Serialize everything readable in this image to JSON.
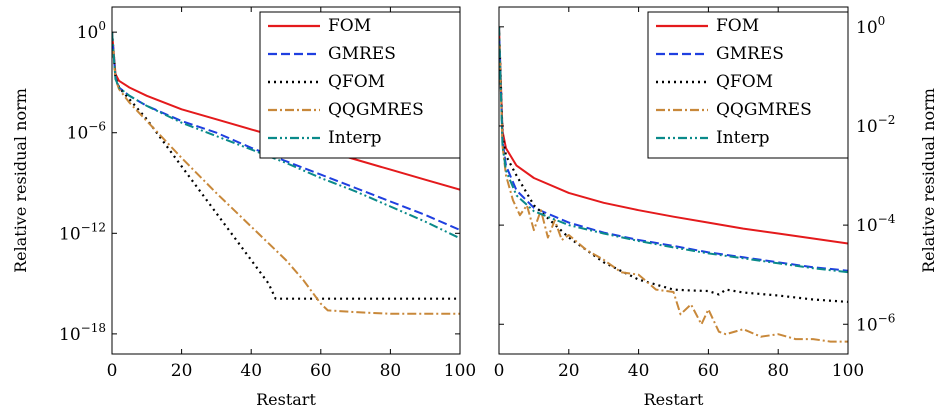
{
  "chart_data": [
    {
      "type": "line",
      "xlabel": "Restart",
      "ylabel": "Relative residual norm",
      "ylabel_side": "left",
      "xlim": [
        0,
        100
      ],
      "ylim_log10": [
        -19.2,
        1.5
      ],
      "yscale": "log",
      "xticks": [
        0,
        20,
        40,
        60,
        80,
        100
      ],
      "yticks_exp": [
        0,
        -6,
        -12,
        -18
      ],
      "legend_position": "top-right",
      "series": [
        {
          "name": "FOM",
          "color": "#e41a1c",
          "dash": "solid",
          "x": [
            0,
            1,
            2,
            5,
            10,
            20,
            30,
            40,
            50,
            60,
            70,
            80,
            90,
            100
          ],
          "y_log10": [
            0.0,
            -2.5,
            -2.9,
            -3.3,
            -3.8,
            -4.6,
            -5.2,
            -5.8,
            -6.4,
            -7.0,
            -7.6,
            -8.2,
            -8.8,
            -9.4
          ]
        },
        {
          "name": "GMRES",
          "color": "#1f3fe0",
          "dash": "dashed",
          "x": [
            0,
            1,
            2,
            5,
            10,
            20,
            30,
            40,
            50,
            60,
            70,
            80,
            90,
            100
          ],
          "y_log10": [
            0.0,
            -2.7,
            -3.3,
            -3.8,
            -4.4,
            -5.3,
            -6.0,
            -6.9,
            -7.7,
            -8.5,
            -9.3,
            -10.1,
            -10.9,
            -11.8
          ]
        },
        {
          "name": "QFOM",
          "color": "#000000",
          "dash": "dotted",
          "x": [
            0,
            1,
            2,
            5,
            10,
            20,
            30,
            40,
            45,
            47,
            50,
            60,
            70,
            80,
            90,
            100
          ],
          "y_log10": [
            0.0,
            -2.7,
            -3.3,
            -4.0,
            -5.2,
            -8.0,
            -10.8,
            -13.6,
            -15.0,
            -15.9,
            -15.9,
            -15.9,
            -15.9,
            -15.9,
            -15.9,
            -15.9
          ]
        },
        {
          "name": "QQGMRES",
          "color": "#c8883a",
          "dash": "dashdot",
          "x": [
            0,
            1,
            2,
            5,
            10,
            20,
            30,
            40,
            50,
            55,
            60,
            62,
            70,
            80,
            90,
            100
          ],
          "y_log10": [
            0.0,
            -2.8,
            -3.4,
            -4.2,
            -5.3,
            -7.5,
            -9.6,
            -11.6,
            -13.6,
            -14.8,
            -16.2,
            -16.6,
            -16.7,
            -16.8,
            -16.8,
            -16.8
          ]
        },
        {
          "name": "Interp",
          "color": "#0a8a8a",
          "dash": "dashdotdot",
          "x": [
            0,
            1,
            2,
            5,
            10,
            20,
            30,
            40,
            50,
            60,
            70,
            80,
            90,
            100
          ],
          "y_log10": [
            0.0,
            -2.8,
            -3.3,
            -3.8,
            -4.4,
            -5.4,
            -6.2,
            -7.0,
            -7.8,
            -8.7,
            -9.5,
            -10.4,
            -11.3,
            -12.3
          ]
        }
      ]
    },
    {
      "type": "line",
      "xlabel": "Restart",
      "ylabel": "Relative residual norm",
      "ylabel_side": "right",
      "xlim": [
        0,
        100
      ],
      "ylim_log10": [
        -6.6,
        0.4
      ],
      "yscale": "log",
      "xticks": [
        0,
        20,
        40,
        60,
        80,
        100
      ],
      "yticks_exp": [
        0,
        -2,
        -4,
        -6
      ],
      "legend_position": "top-right",
      "series": [
        {
          "name": "FOM",
          "color": "#e41a1c",
          "dash": "solid",
          "x": [
            0,
            1,
            2,
            5,
            10,
            20,
            30,
            40,
            50,
            60,
            70,
            80,
            90,
            100
          ],
          "y_log10": [
            0.0,
            -2.1,
            -2.45,
            -2.8,
            -3.05,
            -3.35,
            -3.55,
            -3.7,
            -3.83,
            -3.95,
            -4.07,
            -4.17,
            -4.27,
            -4.37
          ]
        },
        {
          "name": "GMRES",
          "color": "#1f3fe0",
          "dash": "dashed",
          "x": [
            0,
            1,
            2,
            5,
            10,
            20,
            30,
            40,
            50,
            60,
            70,
            80,
            90,
            100
          ],
          "y_log10": [
            0.0,
            -2.3,
            -2.8,
            -3.3,
            -3.65,
            -3.95,
            -4.15,
            -4.3,
            -4.42,
            -4.55,
            -4.65,
            -4.75,
            -4.85,
            -4.92
          ]
        },
        {
          "name": "QFOM",
          "color": "#000000",
          "dash": "dotted",
          "x": [
            0,
            1,
            2,
            5,
            10,
            20,
            30,
            40,
            50,
            55,
            60,
            63,
            65,
            70,
            80,
            90,
            100
          ],
          "y_log10": [
            0.0,
            -2.2,
            -2.6,
            -3.0,
            -3.6,
            -4.25,
            -4.75,
            -5.1,
            -5.3,
            -5.32,
            -5.33,
            -5.4,
            -5.3,
            -5.36,
            -5.42,
            -5.5,
            -5.55
          ]
        },
        {
          "name": "QQGMRES",
          "color": "#c8883a",
          "dash": "dashdot",
          "x": [
            0,
            1,
            2,
            4,
            6,
            8,
            10,
            12,
            14,
            16,
            18,
            20,
            25,
            30,
            35,
            40,
            45,
            50,
            52,
            55,
            58,
            60,
            63,
            65,
            70,
            75,
            80,
            85,
            90,
            95,
            100
          ],
          "y_log10": [
            0.0,
            -2.4,
            -3.0,
            -3.5,
            -3.8,
            -3.6,
            -4.1,
            -3.7,
            -4.25,
            -3.9,
            -4.3,
            -4.2,
            -4.5,
            -4.7,
            -4.95,
            -5.0,
            -5.3,
            -5.35,
            -5.8,
            -5.6,
            -6.0,
            -5.7,
            -6.15,
            -6.2,
            -6.1,
            -6.25,
            -6.2,
            -6.3,
            -6.3,
            -6.35,
            -6.35
          ]
        },
        {
          "name": "Interp",
          "color": "#0a8a8a",
          "dash": "dashdotdot",
          "x": [
            0,
            1,
            2,
            5,
            10,
            20,
            30,
            40,
            50,
            60,
            70,
            80,
            90,
            100
          ],
          "y_log10": [
            0.0,
            -2.4,
            -2.9,
            -3.4,
            -3.72,
            -4.0,
            -4.17,
            -4.32,
            -4.45,
            -4.57,
            -4.67,
            -4.77,
            -4.87,
            -4.95
          ]
        }
      ]
    }
  ]
}
